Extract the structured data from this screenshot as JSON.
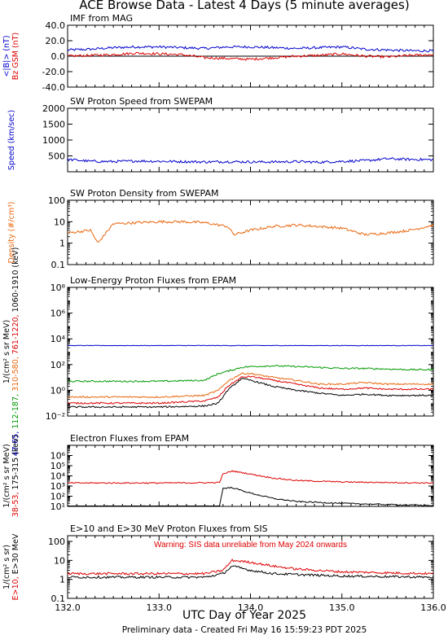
{
  "title": "ACE Browse Data - Latest 4 Days (5 minute averages)",
  "xlabel": "UTC Day of Year 2025",
  "footer": "Preliminary data - Created Fri May 16 15:59:23 PDT 2025",
  "colors": {
    "blue": "#0000cc",
    "red": "#dd0000",
    "orange": "#e8670f",
    "green": "#009900",
    "black": "#000000"
  },
  "chart_data": [
    {
      "type": "line",
      "title": "IMF from MAG",
      "ylabel": [
        {
          "text": "<|B|> (nT)",
          "color": "#0000cc"
        },
        {
          "text": "Bz GSM (nT)",
          "color": "#dd0000"
        }
      ],
      "xlim": [
        132.0,
        136.0
      ],
      "ylim": [
        -40,
        40
      ],
      "yscale": "linear",
      "yticks": [
        -40,
        -20,
        0,
        20,
        40
      ],
      "ytick_labels": [
        "-40.0",
        "-20.0",
        "0.0",
        "20.0",
        "40.0"
      ],
      "zero_line": true,
      "x": [
        132.0,
        132.25,
        132.5,
        132.75,
        133.0,
        133.25,
        133.5,
        133.75,
        134.0,
        134.25,
        134.5,
        134.75,
        135.0,
        135.25,
        135.5,
        135.75,
        136.0
      ],
      "series": [
        {
          "name": "<|B|>",
          "color": "#0000cc",
          "values": [
            8,
            9,
            11,
            12,
            12,
            11,
            10,
            12,
            12,
            11,
            10,
            11,
            12,
            9,
            8,
            7,
            7
          ]
        },
        {
          "name": "Bz GSM",
          "color": "#dd0000",
          "values": [
            0,
            1,
            2,
            4,
            3,
            2,
            -2,
            -3,
            -4,
            -2,
            0,
            1,
            3,
            0,
            -1,
            1,
            2
          ]
        }
      ]
    },
    {
      "type": "line",
      "title": "SW Proton Speed from SWEPAM",
      "ylabel": [
        {
          "text": "Speed (km/sec)",
          "color": "#0000cc"
        }
      ],
      "xlim": [
        132.0,
        136.0
      ],
      "ylim": [
        0,
        2000
      ],
      "yscale": "linear",
      "yticks": [
        500,
        1000,
        1500,
        2000
      ],
      "ytick_labels": [
        "500",
        "1000",
        "1500",
        "2000"
      ],
      "x": [
        132.0,
        132.25,
        132.5,
        132.75,
        133.0,
        133.25,
        133.5,
        133.75,
        134.0,
        134.25,
        134.5,
        134.75,
        135.0,
        135.25,
        135.5,
        135.75,
        136.0
      ],
      "series": [
        {
          "name": "Speed",
          "color": "#0000cc",
          "values": [
            390,
            330,
            320,
            340,
            330,
            320,
            310,
            320,
            310,
            310,
            320,
            300,
            330,
            350,
            410,
            390,
            380
          ]
        }
      ]
    },
    {
      "type": "line",
      "title": "SW Proton Density from SWEPAM",
      "ylabel": [
        {
          "text": "Density (#/cm³)",
          "color": "#e8670f"
        }
      ],
      "xlim": [
        132.0,
        136.0
      ],
      "ylim": [
        0.1,
        100
      ],
      "yscale": "log",
      "yticks": [
        0.1,
        1,
        10,
        100
      ],
      "ytick_labels": [
        "0.1",
        "1",
        "10",
        "100"
      ],
      "x": [
        132.0,
        132.25,
        132.33,
        132.5,
        132.75,
        133.0,
        133.25,
        133.5,
        133.75,
        133.82,
        134.0,
        134.25,
        134.5,
        134.75,
        135.0,
        135.25,
        135.5,
        135.75,
        136.0
      ],
      "series": [
        {
          "name": "Density",
          "color": "#e8670f",
          "values": [
            3,
            4,
            1,
            8,
            9,
            10,
            10,
            9,
            6,
            2.5,
            4,
            6,
            7,
            6,
            5,
            2.5,
            3,
            4,
            7
          ]
        }
      ]
    },
    {
      "type": "line",
      "title": "Low-Energy Proton Fluxes from EPAM",
      "ylabel": [
        {
          "text": "1/(cm² s sr MeV)",
          "color": "#000000"
        },
        {
          "text": "47-65,",
          "color": "#0000cc"
        },
        {
          "text": "112-187,",
          "color": "#009900"
        },
        {
          "text": "310-580,",
          "color": "#e8670f"
        },
        {
          "text": "761-1220,",
          "color": "#dd0000"
        },
        {
          "text": "1060-1910 (keV)",
          "color": "#000000"
        }
      ],
      "xlim": [
        132.0,
        136.0
      ],
      "ylim": [
        0.01,
        100000000
      ],
      "yscale": "log",
      "yticks": [
        0.01,
        1,
        100,
        10000,
        1000000,
        100000000
      ],
      "ytick_labels": [
        "10⁻²",
        "10⁰",
        "10²",
        "10⁴",
        "10⁶",
        "10⁸"
      ],
      "x": [
        132.0,
        132.5,
        133.0,
        133.5,
        133.65,
        133.75,
        133.9,
        134.0,
        134.25,
        134.5,
        134.75,
        135.0,
        135.25,
        135.5,
        135.75,
        136.0
      ],
      "series": [
        {
          "name": "47-65 keV",
          "color": "#0000cc",
          "values": [
            3000,
            3000,
            3000,
            3000,
            3000,
            3000,
            3000,
            3000,
            3000,
            3000,
            3000,
            3000,
            3000,
            3000,
            3000,
            3000
          ]
        },
        {
          "name": "112-187 keV",
          "color": "#009900",
          "values": [
            5,
            5,
            5,
            6,
            20,
            30,
            60,
            70,
            80,
            70,
            60,
            50,
            50,
            45,
            40,
            40
          ]
        },
        {
          "name": "310-580 keV",
          "color": "#e8670f",
          "values": [
            0.3,
            0.3,
            0.3,
            0.4,
            1,
            5,
            20,
            20,
            10,
            6,
            3,
            3,
            4,
            3,
            3,
            3
          ]
        },
        {
          "name": "761-1220 keV",
          "color": "#dd0000",
          "values": [
            0.1,
            0.1,
            0.1,
            0.15,
            0.3,
            2,
            10,
            12,
            6,
            3,
            1.5,
            1.2,
            1.5,
            1.2,
            1.2,
            1.2
          ]
        },
        {
          "name": "1060-1910 keV",
          "color": "#000000",
          "values": [
            0.05,
            0.05,
            0.05,
            0.06,
            0.1,
            1,
            8,
            6,
            2,
            1,
            0.6,
            0.4,
            0.5,
            0.4,
            0.4,
            0.4
          ]
        }
      ]
    },
    {
      "type": "line",
      "title": "Electron Fluxes from EPAM",
      "ylabel": [
        {
          "text": "1/(cm² s sr MeV)",
          "color": "#000000"
        },
        {
          "text": "38-53,",
          "color": "#dd0000"
        },
        {
          "text": "175-315 (keV)",
          "color": "#000000"
        }
      ],
      "xlim": [
        132.0,
        136.0
      ],
      "ylim": [
        10,
        10000000
      ],
      "yscale": "log",
      "yticks": [
        10,
        100,
        1000,
        10000,
        100000,
        1000000
      ],
      "ytick_labels": [
        "10¹",
        "10²",
        "10³",
        "10⁴",
        "10⁵",
        "10⁶"
      ],
      "x": [
        132.0,
        132.5,
        133.0,
        133.5,
        133.66,
        133.7,
        133.8,
        134.0,
        134.25,
        134.5,
        135.0,
        135.5,
        136.0
      ],
      "series": [
        {
          "name": "38-53 keV",
          "color": "#dd0000",
          "values": [
            2000,
            2000,
            2000,
            2100,
            2200,
            15000,
            30000,
            15000,
            6000,
            3500,
            2500,
            2200,
            2000
          ]
        },
        {
          "name": "175-315 keV",
          "color": "#000000",
          "values": [
            10,
            10,
            10,
            10,
            10,
            600,
            700,
            200,
            60,
            30,
            20,
            15,
            12
          ]
        }
      ]
    },
    {
      "type": "line",
      "title": "E>10 and E>30 MeV Proton Fluxes from SIS",
      "ylabel": [
        {
          "text": "1/(cm² s sr)",
          "color": "#000000"
        },
        {
          "text": "E>10,",
          "color": "#dd0000"
        },
        {
          "text": "E>30 MeV",
          "color": "#000000"
        }
      ],
      "annotation": "Warning: SIS data unreliable from May 2024 onwards",
      "xlim": [
        132.0,
        136.0
      ],
      "ylim": [
        0.1,
        200
      ],
      "yscale": "log",
      "yticks": [
        0.1,
        1,
        10,
        100
      ],
      "ytick_labels": [
        "0.1",
        "1",
        "10",
        "100"
      ],
      "xticks": [
        132.0,
        133.0,
        134.0,
        135.0,
        136.0
      ],
      "xtick_labels": [
        "132.0",
        "133.0",
        "134.0",
        "135.0",
        "136.0"
      ],
      "x": [
        132.0,
        132.5,
        133.0,
        133.5,
        133.7,
        133.8,
        134.0,
        134.25,
        134.5,
        135.0,
        135.5,
        136.0
      ],
      "series": [
        {
          "name": "E>10 MeV",
          "color": "#dd0000",
          "values": [
            2,
            2,
            2,
            2,
            3,
            10,
            8,
            5,
            3.5,
            2.5,
            2.2,
            2
          ]
        },
        {
          "name": "E>30 MeV",
          "color": "#000000",
          "values": [
            1.3,
            1.3,
            1.3,
            1.3,
            2,
            5,
            3,
            2,
            1.8,
            1.5,
            1.4,
            1.3
          ]
        }
      ]
    }
  ]
}
